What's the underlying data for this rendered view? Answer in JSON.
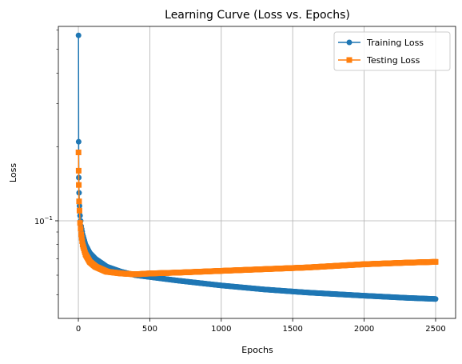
{
  "chart_data": {
    "type": "line",
    "title": "Learning Curve (Loss vs. Epochs)",
    "xlabel": "Epochs",
    "ylabel": "Loss",
    "yscale": "log",
    "xlim": [
      -140,
      2640
    ],
    "ylim": [
      0.04,
      0.62
    ],
    "grid": true,
    "legend_position": "top-right",
    "x_ticks": [
      0,
      500,
      1000,
      1500,
      2000,
      2500
    ],
    "x_tick_labels": [
      "0",
      "500",
      "1000",
      "1500",
      "2000",
      "2500"
    ],
    "y_ticks": [
      0.1
    ],
    "y_tick_labels": [
      "10"
    ],
    "y_tick_exponent": "−1",
    "series": [
      {
        "name": "Training Loss",
        "color": "#1f77b4",
        "marker": "circle",
        "x": [
          1,
          2,
          3,
          5,
          8,
          12,
          20,
          30,
          50,
          80,
          120,
          200,
          300,
          400,
          500,
          700,
          1000,
          1300,
          1600,
          2000,
          2300,
          2500
        ],
        "y": [
          0.57,
          0.21,
          0.15,
          0.13,
          0.115,
          0.105,
          0.095,
          0.088,
          0.08,
          0.074,
          0.07,
          0.065,
          0.062,
          0.06,
          0.059,
          0.057,
          0.0545,
          0.0525,
          0.051,
          0.0495,
          0.0485,
          0.048
        ]
      },
      {
        "name": "Testing Loss",
        "color": "#ff7f0e",
        "marker": "square",
        "x": [
          1,
          2,
          3,
          5,
          8,
          12,
          20,
          30,
          50,
          80,
          120,
          200,
          300,
          400,
          500,
          700,
          1000,
          1300,
          1600,
          2000,
          2300,
          2500
        ],
        "y": [
          0.19,
          0.16,
          0.14,
          0.12,
          0.11,
          0.098,
          0.088,
          0.08,
          0.073,
          0.068,
          0.065,
          0.062,
          0.061,
          0.0605,
          0.061,
          0.0615,
          0.0625,
          0.0635,
          0.0645,
          0.0665,
          0.0675,
          0.068
        ]
      }
    ]
  }
}
